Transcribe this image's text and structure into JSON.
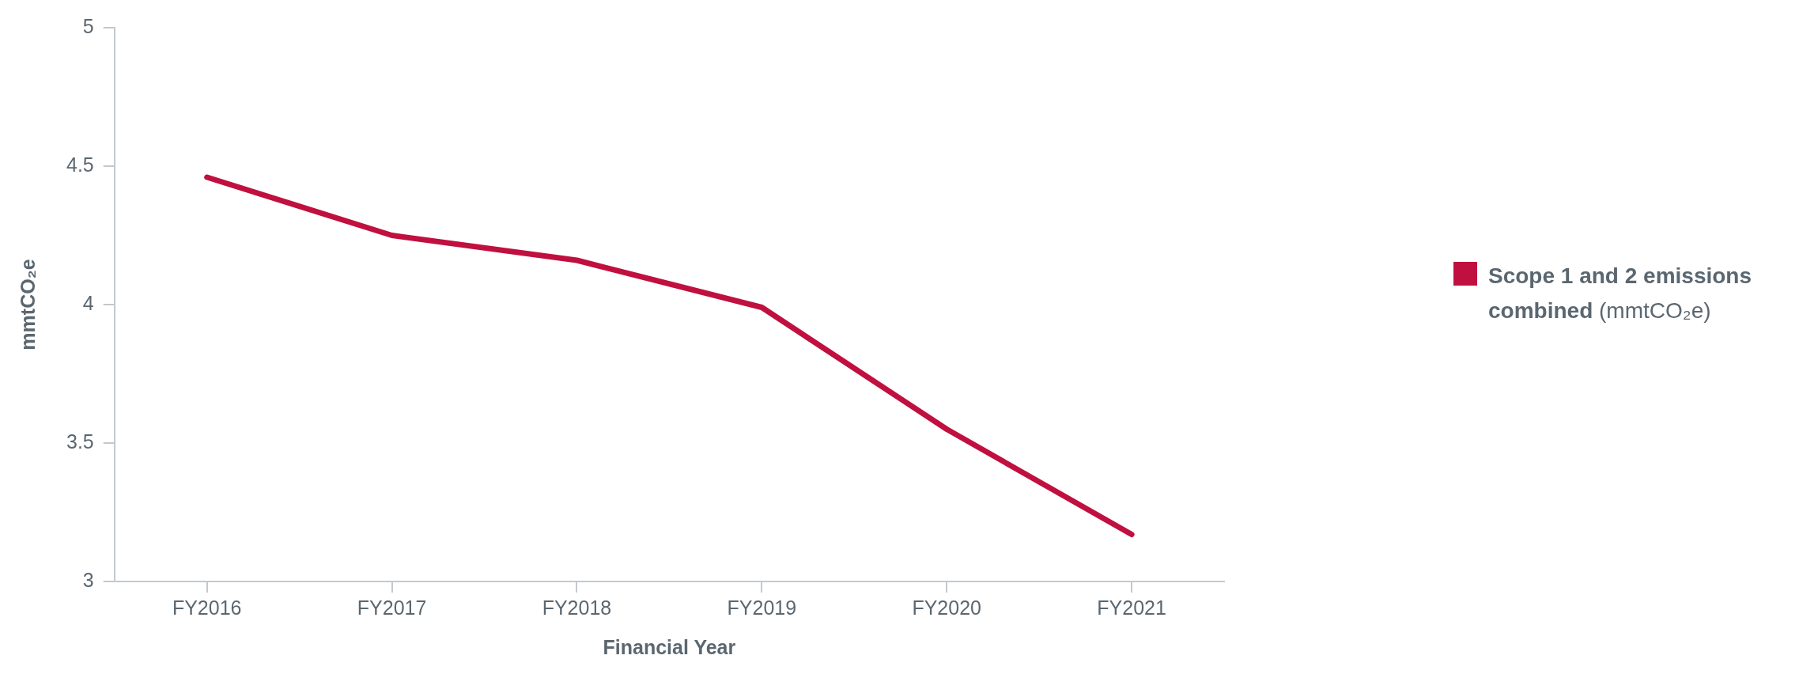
{
  "chart_data": {
    "type": "line",
    "xlabel": "Financial Year",
    "ylabel": "mmtCO₂e",
    "categories": [
      "FY2016",
      "FY2017",
      "FY2018",
      "FY2019",
      "FY2020",
      "FY2021"
    ],
    "series": [
      {
        "name": "Scope 1 and 2 emissions combined (mmtCO₂e)",
        "color": "#c0103f",
        "values": [
          4.46,
          4.25,
          4.16,
          3.99,
          3.55,
          3.17
        ]
      }
    ],
    "ylim": [
      3,
      5
    ],
    "yticks": [
      3,
      3.5,
      4,
      4.5,
      5
    ],
    "grid": false,
    "legend": "right",
    "marker": "none",
    "line_style": "solid"
  }
}
